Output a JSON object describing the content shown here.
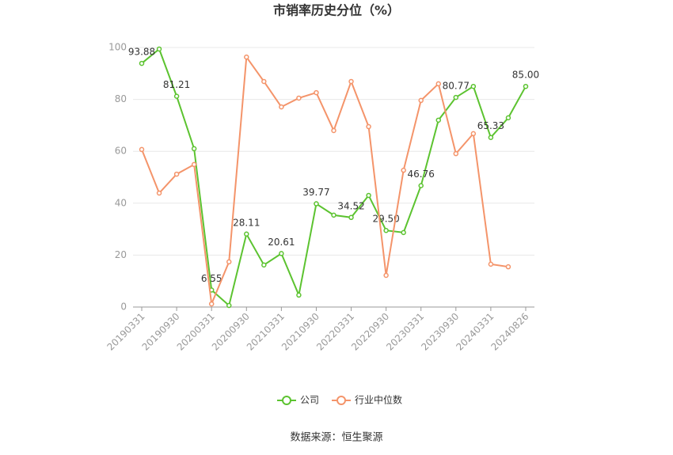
{
  "chart_data": {
    "type": "line",
    "title": "市销率历史分位（%）",
    "categories": [
      "20190331",
      null,
      "20190930",
      null,
      "20200331",
      null,
      "20200930",
      null,
      "20210331",
      null,
      "20210930",
      null,
      "20220331",
      null,
      "20220930",
      null,
      "20230331",
      null,
      "20230930",
      null,
      "20240331",
      null,
      "20240826"
    ],
    "series": [
      {
        "name": "公司",
        "color": "#5cc330",
        "values": [
          93.88,
          99.4,
          81.21,
          61.0,
          6.55,
          0.6,
          28.11,
          16.2,
          20.61,
          4.6,
          39.77,
          35.4,
          34.52,
          43.0,
          29.5,
          28.7,
          46.76,
          72.0,
          80.77,
          85.0,
          65.33,
          72.9,
          85.0
        ],
        "value_labels": [
          "93.88",
          null,
          "81.21",
          null,
          "6.55",
          null,
          "28.11",
          null,
          "20.61",
          null,
          "39.77",
          null,
          "34.52",
          null,
          "29.50",
          null,
          "46.76",
          null,
          "80.77",
          null,
          "65.33",
          null,
          "85.00"
        ]
      },
      {
        "name": "行业中位数",
        "color": "#f4946a",
        "values": [
          60.7,
          43.9,
          51.2,
          54.9,
          1.2,
          17.4,
          96.3,
          86.9,
          77.1,
          80.5,
          82.6,
          68.0,
          86.9,
          69.5,
          12.2,
          52.7,
          79.6,
          86.0,
          59.1,
          66.8,
          16.5,
          15.5,
          null
        ]
      }
    ],
    "ylim": [
      0,
      100
    ],
    "yticks": [
      0,
      20,
      40,
      60,
      80,
      100
    ],
    "grid": true,
    "source": "数据来源：恒生聚源"
  }
}
